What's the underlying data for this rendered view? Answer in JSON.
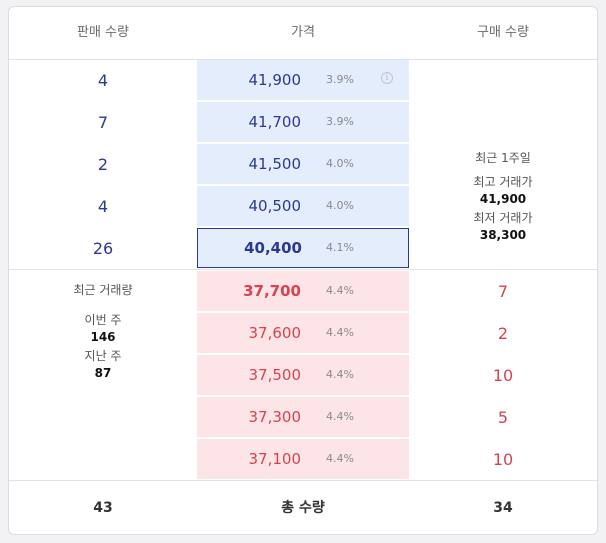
{
  "header": {
    "sell_qty": "판매 수량",
    "price": "가격",
    "buy_qty": "구매 수량"
  },
  "sell_orders": [
    {
      "qty": "4",
      "price": "41,900",
      "rate": "3.9%"
    },
    {
      "qty": "7",
      "price": "41,700",
      "rate": "3.9%"
    },
    {
      "qty": "2",
      "price": "41,500",
      "rate": "4.0%"
    },
    {
      "qty": "4",
      "price": "40,500",
      "rate": "4.0%"
    },
    {
      "qty": "26",
      "price": "40,400",
      "rate": "4.1%"
    }
  ],
  "buy_orders": [
    {
      "qty": "7",
      "price": "37,700",
      "rate": "4.4%"
    },
    {
      "qty": "2",
      "price": "37,600",
      "rate": "4.4%"
    },
    {
      "qty": "10",
      "price": "37,500",
      "rate": "4.4%"
    },
    {
      "qty": "5",
      "price": "37,300",
      "rate": "4.4%"
    },
    {
      "qty": "10",
      "price": "37,100",
      "rate": "4.4%"
    }
  ],
  "weekly_stats": {
    "title": "최근 1주일",
    "high_label": "최고 거래가",
    "high_value": "41,900",
    "low_label": "최저 거래가",
    "low_value": "38,300"
  },
  "volume_stats": {
    "title": "최근 거래량",
    "this_week_label": "이번 주",
    "this_week_value": "146",
    "last_week_label": "지난 주",
    "last_week_value": "87"
  },
  "footer": {
    "sell_total": "43",
    "label": "총 수량",
    "buy_total": "34"
  },
  "icons": {
    "info": "info-icon"
  },
  "colors": {
    "sell_text": "#2b3a8f",
    "buy_text": "#d9424f",
    "sell_bg": "#e3edfb",
    "buy_bg": "#fde4e6"
  }
}
